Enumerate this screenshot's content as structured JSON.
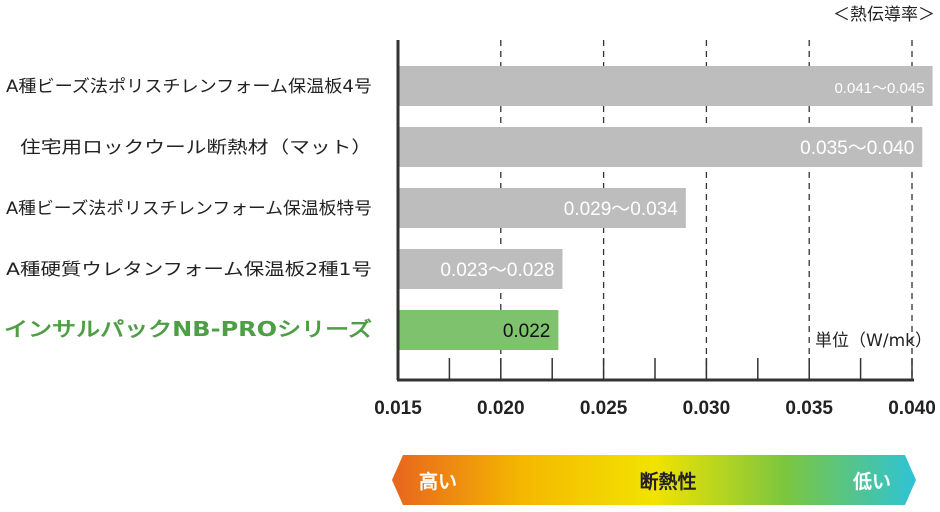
{
  "chart_data": {
    "type": "bar",
    "orientation": "horizontal",
    "title": "＜熱伝導率＞",
    "unit_label": "単位（W/mk）",
    "xlim": [
      0.015,
      0.04
    ],
    "xticks": [
      "0.015",
      "0.020",
      "0.025",
      "0.030",
      "0.035",
      "0.040"
    ],
    "grid": "dashed-vertical",
    "categories": [
      "A種ビーズ法ポリスチレンフォーム保温板4号",
      "住宅用ロックウール断熱材（マット）",
      "A種ビーズ法ポリスチレンフォーム保温板特号",
      "A種硬質ウレタンフォーム保温板2種1号",
      "インサルパックNB-PROシリーズ"
    ],
    "values": [
      0.041,
      0.0405,
      0.029,
      0.023,
      0.0228
    ],
    "ranges": [
      [
        0.041,
        0.045
      ],
      [
        0.035,
        0.04
      ],
      [
        0.029,
        0.034
      ],
      [
        0.023,
        0.028
      ],
      [
        0.022,
        0.022
      ]
    ],
    "data_labels": [
      "0.041～0.045",
      "0.035～0.040",
      "0.029～0.034",
      "0.023～0.028",
      "0.022"
    ],
    "colors": [
      "#bdbdbd",
      "#bdbdbd",
      "#bdbdbd",
      "#bdbdbd",
      "#7ec26d"
    ],
    "highlight_color": "#4e9e45"
  },
  "legend_arrow": {
    "left_label": "高い",
    "center_label": "断熱性",
    "right_label": "低い",
    "gradient": [
      "#e8641e",
      "#f5b800",
      "#f2e300",
      "#7cc63f",
      "#2ec3d6"
    ]
  }
}
